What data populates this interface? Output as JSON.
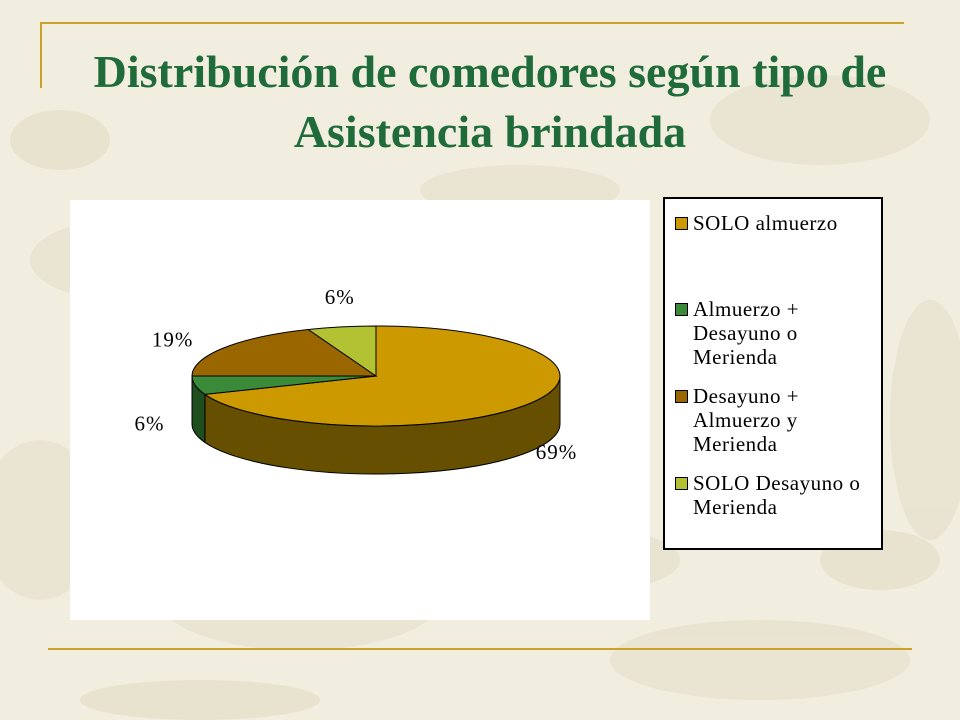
{
  "slide": {
    "title": "Distribución de comedores según tipo de Asistencia brindada",
    "colors": {
      "title": "#1f6b3a",
      "rule": "#c9a227",
      "background": "#f3f0e3"
    }
  },
  "chart_data": {
    "type": "pie",
    "style": "3d",
    "title": "",
    "legend_position": "right",
    "categories": [
      "SOLO almuerzo",
      "Almuerzo + Desayuno o Merienda",
      "Desayuno + Almuerzo y Merienda",
      "SOLO Desayuno o Merienda"
    ],
    "values": [
      69,
      6,
      19,
      6
    ],
    "labels": [
      "69%",
      "6%",
      "19%",
      "6%"
    ],
    "colors": [
      "#cc9900",
      "#3a8a3a",
      "#996600",
      "#b2c232"
    ],
    "side_colors": [
      "#665000",
      "#1e4d1e",
      "#4d3300",
      "#5a6119"
    ]
  }
}
